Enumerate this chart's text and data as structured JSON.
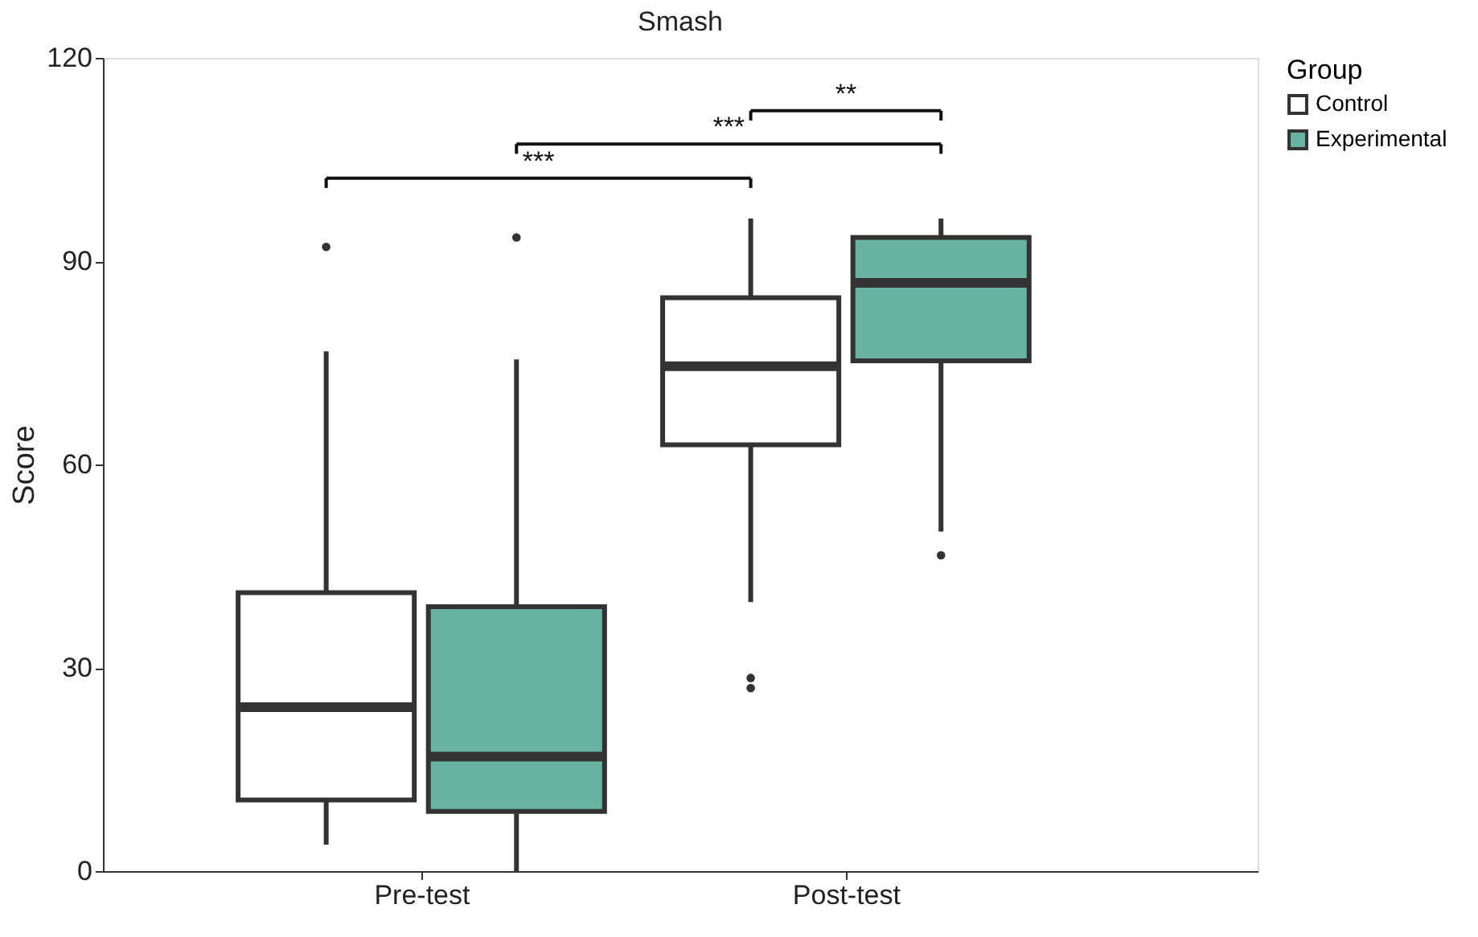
{
  "chart_data": {
    "type": "box",
    "title": "Smash",
    "ylabel": "Score",
    "legend_title": "Group",
    "categories": [
      "Pre-test",
      "Post-test"
    ],
    "ylim": [
      0,
      120
    ],
    "yticks": [
      0,
      30,
      60,
      90,
      120
    ],
    "grid": false,
    "legend": "right",
    "annotations": [
      "***",
      "***",
      "**"
    ],
    "series": [
      {
        "name": "Control",
        "color": "#ffffff",
        "boxes": [
          {
            "low": 3.9,
            "q1": 10.5,
            "median": 24.2,
            "q3": 41.1,
            "high": 76.7,
            "outliers": [
              92.1
            ]
          },
          {
            "low": 39.7,
            "q1": 62.9,
            "median": 74.5,
            "q3": 84.6,
            "high": 96.3,
            "outliers": [
              28.5,
              27.0
            ]
          }
        ]
      },
      {
        "name": "Experimental",
        "color": "#69b3a2",
        "boxes": [
          {
            "low": 0,
            "q1": 8.8,
            "median": 16.9,
            "q3": 39.0,
            "high": 75.5,
            "outliers": [
              93.5
            ]
          },
          {
            "low": 50.1,
            "q1": 75.3,
            "median": 86.8,
            "q3": 93.5,
            "high": 96.3,
            "outliers": [
              46.6
            ]
          }
        ]
      }
    ]
  }
}
